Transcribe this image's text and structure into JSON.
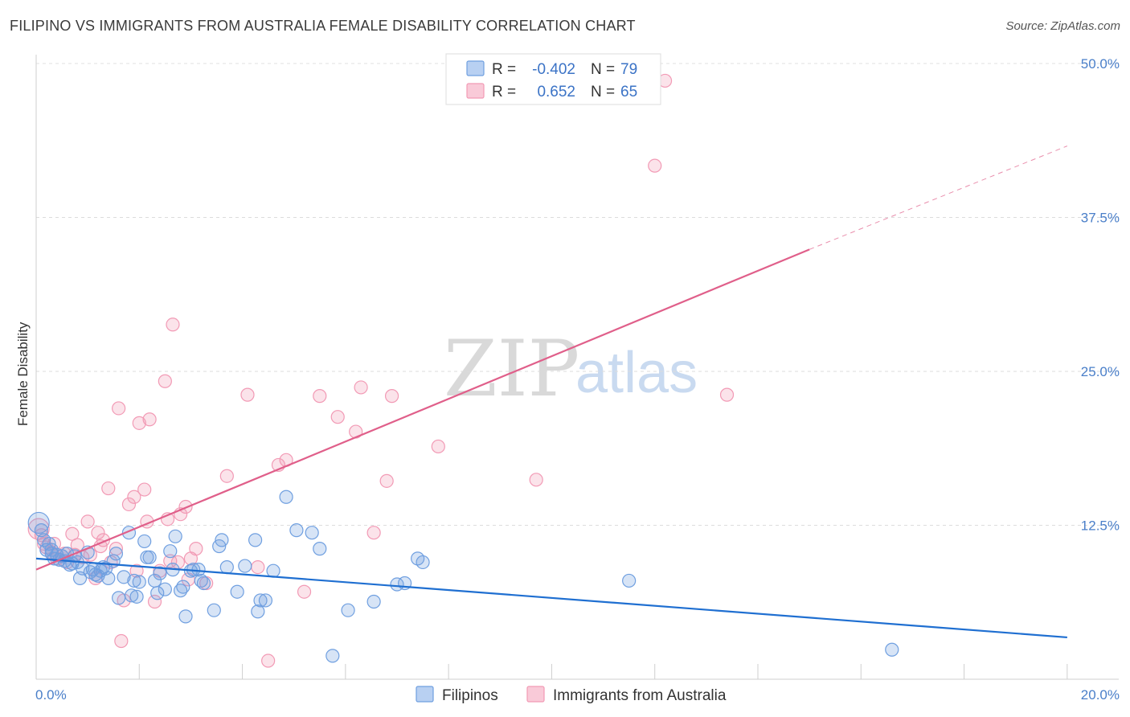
{
  "header": {
    "title": "FILIPINO VS IMMIGRANTS FROM AUSTRALIA FEMALE DISABILITY CORRELATION CHART",
    "source": "Source: ZipAtlas.com"
  },
  "watermark": {
    "zip": "ZIP",
    "atlas": "atlas"
  },
  "legend": {
    "rows": [
      {
        "r_label": "R =",
        "r_value": "-0.402",
        "n_label": "N =",
        "n_value": "79"
      },
      {
        "r_label": "R =",
        "r_value": "0.652",
        "n_label": "N =",
        "n_value": "65"
      }
    ]
  },
  "chart_data": {
    "type": "scatter",
    "title": "FILIPINO VS IMMIGRANTS FROM AUSTRALIA FEMALE DISABILITY CORRELATION CHART",
    "xlabel": "",
    "ylabel": "Female Disability",
    "xlim": [
      0,
      21
    ],
    "ylim": [
      0,
      50
    ],
    "x_tick_labels": [
      "0.0%",
      "20.0%"
    ],
    "y_ticks": [
      12.5,
      25.0,
      37.5,
      50.0
    ],
    "y_tick_labels": [
      "12.5%",
      "25.0%",
      "37.5%",
      "50.0%"
    ],
    "grid": true,
    "legend_position": "top-center",
    "colors": {
      "filipinos": "#6f9fe0",
      "australia": "#f29ab5",
      "filipinos_line": "#1f6fd1",
      "australia_line": "#e05f8a"
    },
    "series": [
      {
        "name": "Filipinos",
        "r": -0.402,
        "n": 79,
        "trend": {
          "x": [
            0,
            20.0
          ],
          "y": [
            9.8,
            3.4
          ]
        },
        "points": [
          [
            0.05,
            12.7
          ],
          [
            0.1,
            12.1
          ],
          [
            0.15,
            11.3
          ],
          [
            0.2,
            10.5
          ],
          [
            0.25,
            11.0
          ],
          [
            0.3,
            10.2
          ],
          [
            0.35,
            9.8
          ],
          [
            0.4,
            10.1
          ],
          [
            0.45,
            9.7
          ],
          [
            0.5,
            10.0
          ],
          [
            0.55,
            9.6
          ],
          [
            0.6,
            10.2
          ],
          [
            0.7,
            9.4
          ],
          [
            0.75,
            10.0
          ],
          [
            0.8,
            9.5
          ],
          [
            0.85,
            8.2
          ],
          [
            0.9,
            9.0
          ],
          [
            1.0,
            10.3
          ],
          [
            1.05,
            8.7
          ],
          [
            1.1,
            8.9
          ],
          [
            1.15,
            8.5
          ],
          [
            1.2,
            8.4
          ],
          [
            1.25,
            8.8
          ],
          [
            1.3,
            9.1
          ],
          [
            1.4,
            8.2
          ],
          [
            1.5,
            9.6
          ],
          [
            1.55,
            10.2
          ],
          [
            1.6,
            6.6
          ],
          [
            1.7,
            8.3
          ],
          [
            1.8,
            11.9
          ],
          [
            1.85,
            6.8
          ],
          [
            1.9,
            8.0
          ],
          [
            1.95,
            6.7
          ],
          [
            2.0,
            7.9
          ],
          [
            2.1,
            11.2
          ],
          [
            2.15,
            9.9
          ],
          [
            2.2,
            9.9
          ],
          [
            2.3,
            8.0
          ],
          [
            2.35,
            7.0
          ],
          [
            2.4,
            8.6
          ],
          [
            2.6,
            10.4
          ],
          [
            2.65,
            8.9
          ],
          [
            2.7,
            11.6
          ],
          [
            2.8,
            7.2
          ],
          [
            2.85,
            7.5
          ],
          [
            2.9,
            5.1
          ],
          [
            3.0,
            8.8
          ],
          [
            3.05,
            8.9
          ],
          [
            3.15,
            8.9
          ],
          [
            3.2,
            8.0
          ],
          [
            3.25,
            7.8
          ],
          [
            3.45,
            5.6
          ],
          [
            3.55,
            10.8
          ],
          [
            3.6,
            11.3
          ],
          [
            3.7,
            9.1
          ],
          [
            3.9,
            7.1
          ],
          [
            4.05,
            9.2
          ],
          [
            4.25,
            11.3
          ],
          [
            4.3,
            5.5
          ],
          [
            4.35,
            6.4
          ],
          [
            4.45,
            6.4
          ],
          [
            4.6,
            8.8
          ],
          [
            4.85,
            14.8
          ],
          [
            5.05,
            12.1
          ],
          [
            5.35,
            11.9
          ],
          [
            5.5,
            10.6
          ],
          [
            5.75,
            1.9
          ],
          [
            6.05,
            5.6
          ],
          [
            6.55,
            6.3
          ],
          [
            7.0,
            7.7
          ],
          [
            7.15,
            7.8
          ],
          [
            7.4,
            9.8
          ],
          [
            7.5,
            9.5
          ],
          [
            11.5,
            8.0
          ],
          [
            16.6,
            2.4
          ],
          [
            0.3,
            10.5
          ],
          [
            0.65,
            9.3
          ],
          [
            1.35,
            9.0
          ],
          [
            2.5,
            7.3
          ]
        ]
      },
      {
        "name": "Immigrants from Australia",
        "r": 0.652,
        "n": 65,
        "trend": {
          "x": [
            0,
            15.0
          ],
          "y": [
            8.9,
            34.9
          ]
        },
        "trend_dashed": {
          "x": [
            15.0,
            20.0
          ],
          "y": [
            34.9,
            43.3
          ]
        },
        "points": [
          [
            0.05,
            12.2
          ],
          [
            0.1,
            11.7
          ],
          [
            0.15,
            11.0
          ],
          [
            0.2,
            10.7
          ],
          [
            0.3,
            10.3
          ],
          [
            0.4,
            9.8
          ],
          [
            0.5,
            10.0
          ],
          [
            0.6,
            9.5
          ],
          [
            0.7,
            11.8
          ],
          [
            0.75,
            10.1
          ],
          [
            0.8,
            10.9
          ],
          [
            0.9,
            9.9
          ],
          [
            1.0,
            12.8
          ],
          [
            1.05,
            10.1
          ],
          [
            1.15,
            8.2
          ],
          [
            1.2,
            11.9
          ],
          [
            1.3,
            11.3
          ],
          [
            1.4,
            15.5
          ],
          [
            1.45,
            9.5
          ],
          [
            1.55,
            10.6
          ],
          [
            1.6,
            22.0
          ],
          [
            1.65,
            3.1
          ],
          [
            1.7,
            6.4
          ],
          [
            1.8,
            14.2
          ],
          [
            1.9,
            14.8
          ],
          [
            1.95,
            8.8
          ],
          [
            2.0,
            20.8
          ],
          [
            2.1,
            15.4
          ],
          [
            2.15,
            12.8
          ],
          [
            2.2,
            21.1
          ],
          [
            2.3,
            6.3
          ],
          [
            2.4,
            8.8
          ],
          [
            2.5,
            24.2
          ],
          [
            2.55,
            13.0
          ],
          [
            2.6,
            9.6
          ],
          [
            2.65,
            28.8
          ],
          [
            2.8,
            13.4
          ],
          [
            2.9,
            14.0
          ],
          [
            2.95,
            8.1
          ],
          [
            3.0,
            9.8
          ],
          [
            3.1,
            10.6
          ],
          [
            3.3,
            7.8
          ],
          [
            3.7,
            16.5
          ],
          [
            4.1,
            23.1
          ],
          [
            4.3,
            9.1
          ],
          [
            4.5,
            1.5
          ],
          [
            4.7,
            17.4
          ],
          [
            4.85,
            17.8
          ],
          [
            5.2,
            7.1
          ],
          [
            5.5,
            23.0
          ],
          [
            5.85,
            21.3
          ],
          [
            6.2,
            20.1
          ],
          [
            6.3,
            23.7
          ],
          [
            6.55,
            11.9
          ],
          [
            6.8,
            16.1
          ],
          [
            6.9,
            23.0
          ],
          [
            7.8,
            18.9
          ],
          [
            9.7,
            16.2
          ],
          [
            12.0,
            41.7
          ],
          [
            12.2,
            48.6
          ],
          [
            13.4,
            23.1
          ],
          [
            0.35,
            11.0
          ],
          [
            0.55,
            10.2
          ],
          [
            1.25,
            10.8
          ],
          [
            2.75,
            9.5
          ]
        ]
      }
    ]
  },
  "bottom_legend": {
    "items": [
      {
        "label": "Filipinos"
      },
      {
        "label": "Immigrants from Australia"
      }
    ]
  }
}
